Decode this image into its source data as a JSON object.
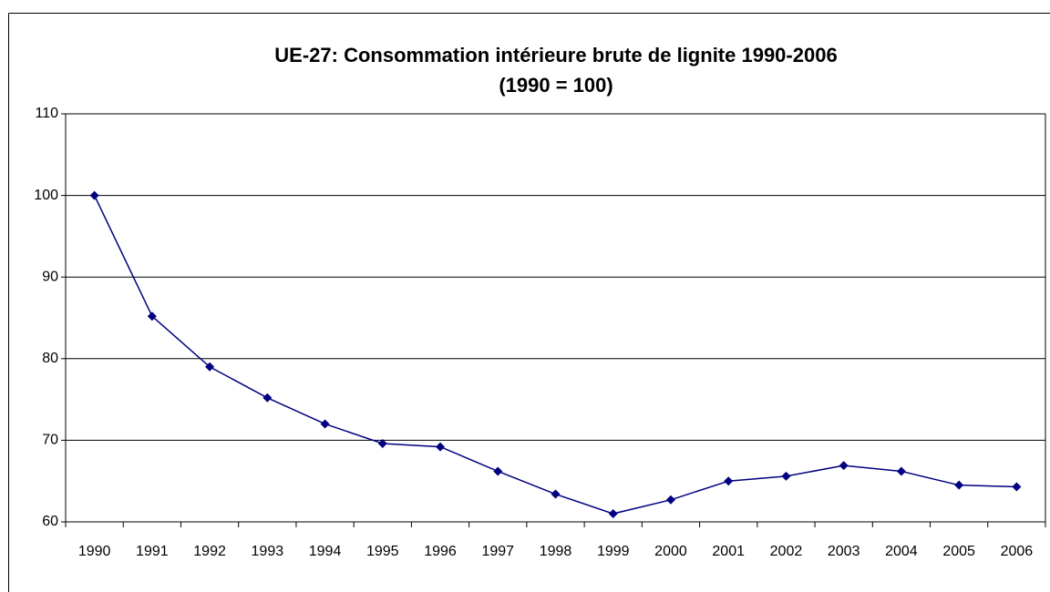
{
  "chart_data": {
    "type": "line",
    "title": "UE-27: Consommation intérieure brute de lignite 1990-2006",
    "subtitle": "(1990 = 100)",
    "categories": [
      "1990",
      "1991",
      "1992",
      "1993",
      "1994",
      "1995",
      "1996",
      "1997",
      "1998",
      "1999",
      "2000",
      "2001",
      "2002",
      "2003",
      "2004",
      "2005",
      "2006"
    ],
    "series": [
      {
        "name": "UE-27",
        "color": "#000080",
        "values": [
          100,
          85.2,
          79.0,
          75.2,
          72.0,
          69.6,
          69.2,
          66.2,
          63.4,
          61.0,
          62.7,
          65.0,
          65.6,
          66.9,
          66.2,
          64.5,
          64.3
        ]
      }
    ],
    "ylim": [
      60,
      110
    ],
    "yticks": [
      60,
      70,
      80,
      90,
      100,
      110
    ],
    "grid": true
  }
}
